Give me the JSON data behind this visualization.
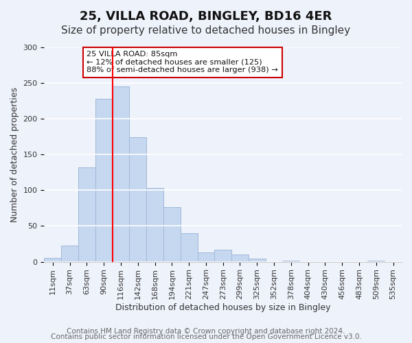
{
  "title": "25, VILLA ROAD, BINGLEY, BD16 4ER",
  "subtitle": "Size of property relative to detached houses in Bingley",
  "xlabel": "Distribution of detached houses by size in Bingley",
  "ylabel": "Number of detached properties",
  "bar_color": "#c5d8f0",
  "bar_edge_color": "#a0b8d8",
  "categories": [
    "11sqm",
    "37sqm",
    "63sqm",
    "90sqm",
    "116sqm",
    "142sqm",
    "168sqm",
    "194sqm",
    "221sqm",
    "247sqm",
    "273sqm",
    "299sqm",
    "325sqm",
    "352sqm",
    "378sqm",
    "404sqm",
    "430sqm",
    "456sqm",
    "483sqm",
    "509sqm",
    "535sqm"
  ],
  "values": [
    5,
    23,
    132,
    228,
    245,
    174,
    103,
    76,
    40,
    13,
    17,
    10,
    4,
    0,
    2,
    0,
    0,
    0,
    0,
    2,
    0
  ],
  "ylim": [
    0,
    300
  ],
  "yticks": [
    0,
    50,
    100,
    150,
    200,
    250,
    300
  ],
  "red_line_x": 3.5,
  "annotation_text": "25 VILLA ROAD: 85sqm\n← 12% of detached houses are smaller (125)\n88% of semi-detached houses are larger (938) →",
  "annotation_box_color": "#ffffff",
  "annotation_box_edge_color": "#cc0000",
  "footer_line1": "Contains HM Land Registry data © Crown copyright and database right 2024.",
  "footer_line2": "Contains public sector information licensed under the Open Government Licence v3.0.",
  "background_color": "#eef2fb",
  "plot_background_color": "#eef2fb",
  "grid_color": "#ffffff",
  "title_fontsize": 13,
  "subtitle_fontsize": 11,
  "axis_fontsize": 9,
  "tick_fontsize": 8,
  "footer_fontsize": 7.5
}
